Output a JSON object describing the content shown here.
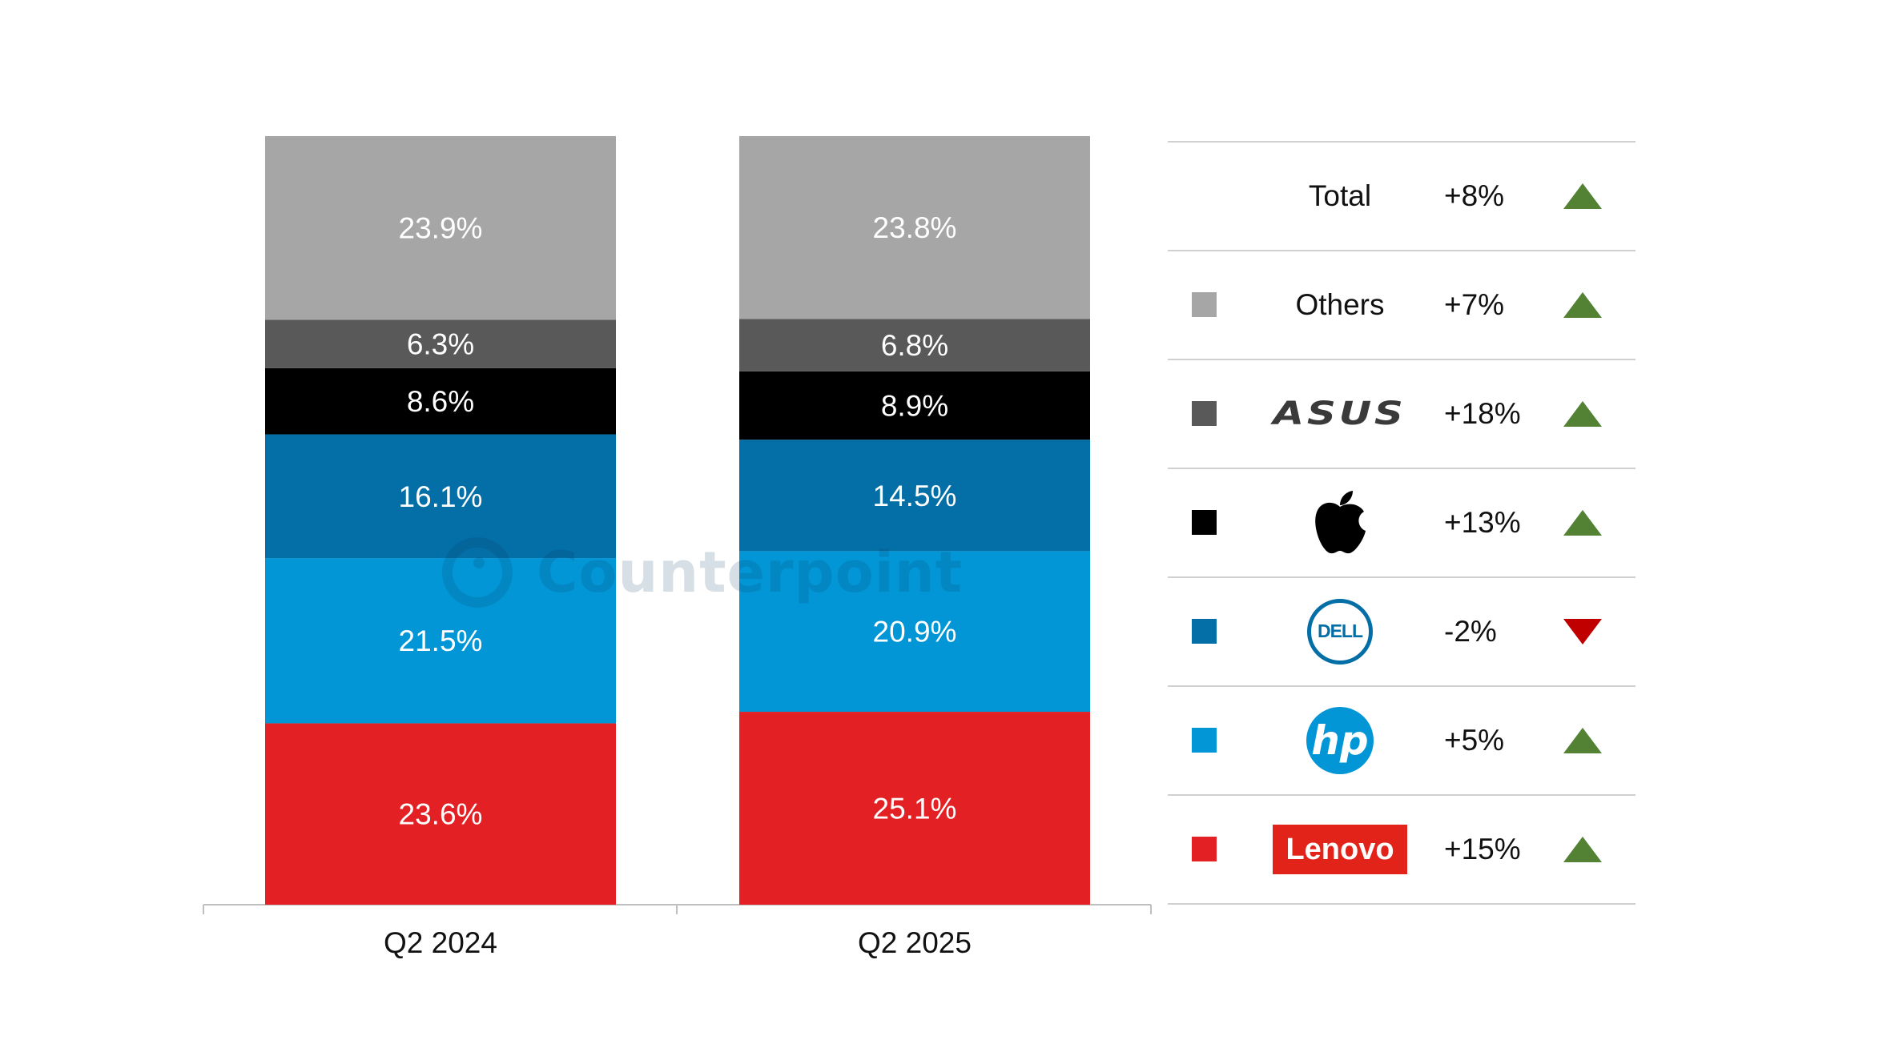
{
  "chart_data": {
    "type": "bar",
    "stacked": true,
    "categories": [
      "Q2 2024",
      "Q2 2025"
    ],
    "series": [
      {
        "name": "Lenovo",
        "color": "#e32125",
        "values": [
          23.6,
          25.1
        ],
        "labels": [
          "23.6%",
          "25.1%"
        ]
      },
      {
        "name": "HP",
        "color": "#0296d6",
        "values": [
          21.5,
          20.9
        ],
        "labels": [
          "21.5%",
          "20.9%"
        ]
      },
      {
        "name": "Dell",
        "color": "#046ea6",
        "values": [
          16.1,
          14.5
        ],
        "labels": [
          "16.1%",
          "14.5%"
        ]
      },
      {
        "name": "Apple",
        "color": "#000000",
        "values": [
          8.6,
          8.9
        ],
        "labels": [
          "8.6%",
          "8.9%"
        ]
      },
      {
        "name": "ASUS",
        "color": "#595959",
        "values": [
          6.3,
          6.8
        ],
        "labels": [
          "6.3%",
          "6.8%"
        ]
      },
      {
        "name": "Others",
        "color": "#a6a6a6",
        "values": [
          23.9,
          23.8
        ],
        "labels": [
          "23.9%",
          "23.8%"
        ]
      }
    ],
    "ylim": [
      0,
      100
    ],
    "title": "",
    "xlabel": "",
    "ylabel": ""
  },
  "watermark": {
    "text": "Counterpoint"
  },
  "legend": [
    {
      "key": "total",
      "brand": "Total",
      "change": "+8%",
      "direction": "up",
      "swatch": null
    },
    {
      "key": "others",
      "brand": "Others",
      "change": "+7%",
      "direction": "up",
      "swatch": "#a6a6a6"
    },
    {
      "key": "asus",
      "brand": "ASUS",
      "change": "+18%",
      "direction": "up",
      "swatch": "#595959"
    },
    {
      "key": "apple",
      "brand": "Apple",
      "change": "+13%",
      "direction": "up",
      "swatch": "#000000"
    },
    {
      "key": "dell",
      "brand": "DELL",
      "change": "-2%",
      "direction": "down",
      "swatch": "#046ea6"
    },
    {
      "key": "hp",
      "brand": "hp",
      "change": "+5%",
      "direction": "up",
      "swatch": "#0296d6"
    },
    {
      "key": "lenovo",
      "brand": "Lenovo",
      "change": "+15%",
      "direction": "up",
      "swatch": "#e32125"
    }
  ],
  "colors": {
    "up": "#548235",
    "down": "#c00000",
    "text": "#111111",
    "rule": "#d0d0d0",
    "bar_label": "#ffffff"
  }
}
